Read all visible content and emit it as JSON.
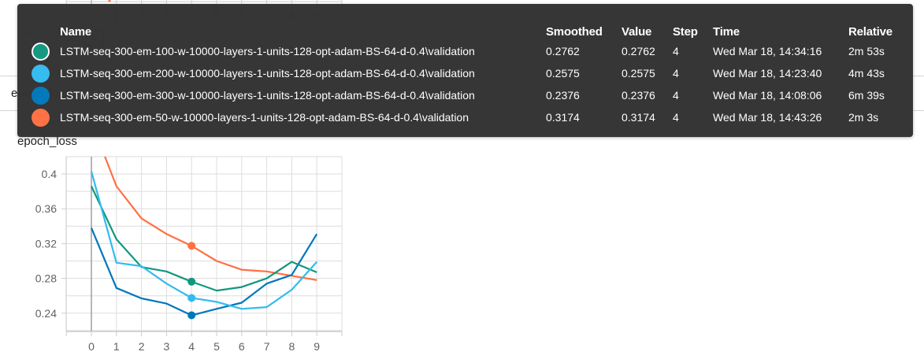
{
  "background": {
    "upper_chart_xticks": [
      "0",
      "1",
      "2",
      "3",
      "4",
      "5",
      "6",
      "7",
      "8",
      "9"
    ],
    "upper_card_title": "epoch_loss",
    "toolbar_icons": [
      "fullscreen-icon",
      "toggle-log-scale-icon",
      "fit-domain-icon"
    ]
  },
  "tooltip": {
    "headers": {
      "name": "Name",
      "smoothed": "Smoothed",
      "value": "Value",
      "step": "Step",
      "time": "Time",
      "relative": "Relative"
    },
    "rows": [
      {
        "color": "#12977f",
        "selected": true,
        "name": "LSTM-seq-300-em-100-w-10000-layers-1-units-128-opt-adam-BS-64-d-0.4\\validation",
        "smoothed": "0.2762",
        "value": "0.2762",
        "step": "4",
        "time": "Wed Mar 18, 14:34:16",
        "relative": "2m 53s"
      },
      {
        "color": "#33bbee",
        "selected": false,
        "name": "LSTM-seq-300-em-200-w-10000-layers-1-units-128-opt-adam-BS-64-d-0.4\\validation",
        "smoothed": "0.2575",
        "value": "0.2575",
        "step": "4",
        "time": "Wed Mar 18, 14:23:40",
        "relative": "4m 43s"
      },
      {
        "color": "#0077bb",
        "selected": false,
        "name": "LSTM-seq-300-em-300-w-10000-layers-1-units-128-opt-adam-BS-64-d-0.4\\validation",
        "smoothed": "0.2376",
        "value": "0.2376",
        "step": "4",
        "time": "Wed Mar 18, 14:08:06",
        "relative": "6m 39s"
      },
      {
        "color": "#ff7043",
        "selected": false,
        "name": "LSTM-seq-300-em-50-w-10000-layers-1-units-128-opt-adam-BS-64-d-0.4\\validation",
        "smoothed": "0.3174",
        "value": "0.3174",
        "step": "4",
        "time": "Wed Mar 18, 14:43:26",
        "relative": "2m 3s"
      }
    ]
  },
  "chart_data": {
    "type": "line",
    "title": "epoch_loss",
    "xlabel": "",
    "ylabel": "",
    "x": [
      0,
      1,
      2,
      3,
      4,
      5,
      6,
      7,
      8,
      9
    ],
    "xticks": [
      "0",
      "1",
      "2",
      "3",
      "4",
      "5",
      "6",
      "7",
      "8",
      "9"
    ],
    "yticks": [
      "0.24",
      "0.28",
      "0.32",
      "0.36",
      "0.4"
    ],
    "ylim": [
      0.22,
      0.42
    ],
    "xlim": [
      -1,
      10
    ],
    "grid": true,
    "legend": "tooltip",
    "hover_step": 4,
    "series": [
      {
        "name": "LSTM-seq-300-em-100-w-10000-layers-1-units-128-opt-adam-BS-64-d-0.4\\validation",
        "color": "#12977f",
        "values": [
          0.386,
          0.325,
          0.293,
          0.288,
          0.2762,
          0.266,
          0.27,
          0.28,
          0.299,
          0.287
        ]
      },
      {
        "name": "LSTM-seq-300-em-200-w-10000-layers-1-units-128-opt-adam-BS-64-d-0.4\\validation",
        "color": "#33bbee",
        "values": [
          0.403,
          0.298,
          0.294,
          0.274,
          0.2575,
          0.253,
          0.245,
          0.247,
          0.267,
          0.299
        ]
      },
      {
        "name": "LSTM-seq-300-em-300-w-10000-layers-1-units-128-opt-adam-BS-64-d-0.4\\validation",
        "color": "#0077bb",
        "values": [
          0.338,
          0.269,
          0.257,
          0.251,
          0.2376,
          0.245,
          0.252,
          0.274,
          0.284,
          0.331
        ]
      },
      {
        "name": "LSTM-seq-300-em-50-w-10000-layers-1-units-128-opt-adam-BS-64-d-0.4\\validation",
        "color": "#ff7043",
        "values": [
          0.46,
          0.386,
          0.349,
          0.331,
          0.3174,
          0.3,
          0.29,
          0.288,
          0.283,
          0.278
        ]
      }
    ]
  }
}
